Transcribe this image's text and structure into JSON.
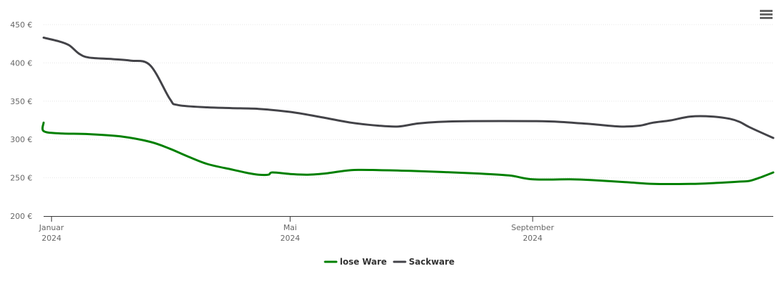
{
  "menu": {
    "icon": "hamburger-menu-icon"
  },
  "chart_data": {
    "type": "line",
    "title": "",
    "xlabel": "",
    "ylabel": "",
    "ylim": [
      200,
      450
    ],
    "y_ticks": [
      200,
      250,
      300,
      350,
      400,
      450
    ],
    "y_tick_suffix": " €",
    "y_tick_labels": [
      "200 €",
      "250 €",
      "300 €",
      "350 €",
      "400 €",
      "450 €"
    ],
    "xlim": [
      "2023-12-28",
      "2025-01-01"
    ],
    "x_ticks": [
      {
        "date": "2024-01-01",
        "line1": "Januar",
        "line2": "2024"
      },
      {
        "date": "2024-05-01",
        "line1": "Mai",
        "line2": "2024"
      },
      {
        "date": "2024-09-01",
        "line1": "September",
        "line2": "2024"
      }
    ],
    "grid": true,
    "legend": "bottom-center",
    "series": [
      {
        "name": "lose Ware",
        "color": "#008000",
        "points": [
          [
            "2023-12-28",
            322
          ],
          [
            "2023-12-28",
            311
          ],
          [
            "2024-01-05",
            308
          ],
          [
            "2024-01-20",
            307
          ],
          [
            "2024-02-05",
            304
          ],
          [
            "2024-02-20",
            297
          ],
          [
            "2024-03-01",
            288
          ],
          [
            "2024-03-10",
            278
          ],
          [
            "2024-03-20",
            268
          ],
          [
            "2024-04-01",
            261
          ],
          [
            "2024-04-10",
            256
          ],
          [
            "2024-04-15",
            254
          ],
          [
            "2024-04-20",
            254
          ],
          [
            "2024-04-22",
            257
          ],
          [
            "2024-05-01",
            255
          ],
          [
            "2024-05-10",
            254
          ],
          [
            "2024-05-20",
            256
          ],
          [
            "2024-06-01",
            260
          ],
          [
            "2024-06-15",
            260
          ],
          [
            "2024-07-01",
            259
          ],
          [
            "2024-08-01",
            256
          ],
          [
            "2024-08-20",
            253
          ],
          [
            "2024-09-01",
            248
          ],
          [
            "2024-09-20",
            248
          ],
          [
            "2024-10-01",
            247
          ],
          [
            "2024-10-20",
            244
          ],
          [
            "2024-11-01",
            242
          ],
          [
            "2024-11-20",
            242
          ],
          [
            "2024-12-01",
            243
          ],
          [
            "2024-12-15",
            245
          ],
          [
            "2024-12-20",
            246
          ],
          [
            "2024-12-25",
            250
          ],
          [
            "2025-01-01",
            257
          ]
        ]
      },
      {
        "name": "Sackware",
        "color": "#434348",
        "points": [
          [
            "2023-12-28",
            433
          ],
          [
            "2024-01-05",
            428
          ],
          [
            "2024-01-10",
            423
          ],
          [
            "2024-01-15",
            412
          ],
          [
            "2024-01-20",
            407
          ],
          [
            "2024-02-01",
            405
          ],
          [
            "2024-02-10",
            403
          ],
          [
            "2024-02-20",
            397
          ],
          [
            "2024-03-01",
            353
          ],
          [
            "2024-03-05",
            345
          ],
          [
            "2024-03-20",
            342
          ],
          [
            "2024-04-01",
            341
          ],
          [
            "2024-04-15",
            340
          ],
          [
            "2024-05-01",
            336
          ],
          [
            "2024-05-15",
            330
          ],
          [
            "2024-06-01",
            322
          ],
          [
            "2024-06-15",
            318
          ],
          [
            "2024-06-25",
            317
          ],
          [
            "2024-07-05",
            321
          ],
          [
            "2024-07-15",
            323
          ],
          [
            "2024-08-01",
            324
          ],
          [
            "2024-09-01",
            324
          ],
          [
            "2024-09-15",
            323
          ],
          [
            "2024-10-01",
            320
          ],
          [
            "2024-10-15",
            317
          ],
          [
            "2024-10-25",
            318
          ],
          [
            "2024-11-01",
            322
          ],
          [
            "2024-11-10",
            325
          ],
          [
            "2024-11-20",
            330
          ],
          [
            "2024-12-01",
            330
          ],
          [
            "2024-12-10",
            327
          ],
          [
            "2024-12-15",
            323
          ],
          [
            "2024-12-20",
            316
          ],
          [
            "2025-01-01",
            302
          ]
        ]
      }
    ]
  }
}
